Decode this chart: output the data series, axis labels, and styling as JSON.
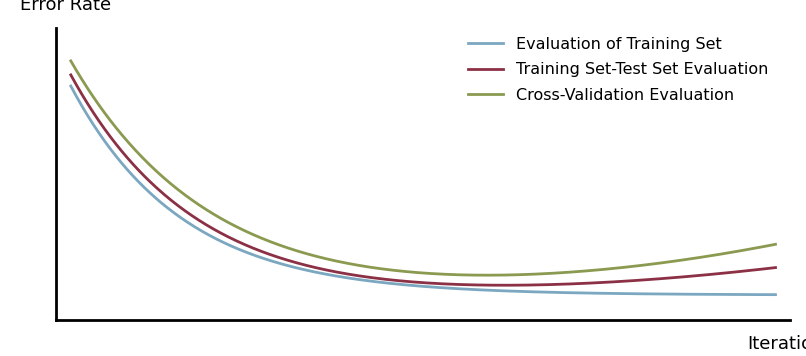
{
  "title": "",
  "xlabel": "Iterations",
  "ylabel": "Error Rate",
  "background_color": "#ffffff",
  "line_blue_color": "#7ba7c0",
  "line_red_color": "#8b3045",
  "line_green_color": "#8a9a50",
  "legend_labels": [
    "Evaluation of Training Set",
    "Training Set-Test Set Evaluation",
    "Cross-Validation Evaluation"
  ],
  "line_width": 2.0,
  "xlabel_fontsize": 13,
  "ylabel_fontsize": 13,
  "legend_fontsize": 11.5
}
